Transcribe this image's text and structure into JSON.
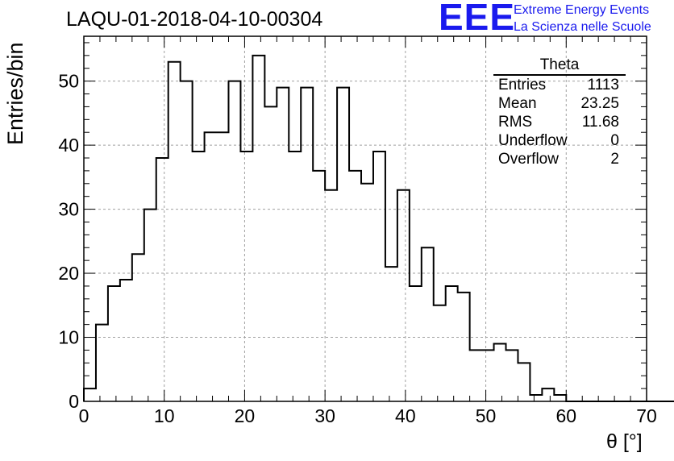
{
  "run_title": "LAQU-01-2018-04-10-00304",
  "logo": {
    "mark": "EEE",
    "line1": "Extreme Energy Events",
    "line2": "La Scienza nelle Scuole",
    "color": "#1a1aee"
  },
  "stats": {
    "title": "Theta",
    "rows": [
      {
        "key": "Entries",
        "value": "1113"
      },
      {
        "key": "Mean",
        "value": "23.25"
      },
      {
        "key": "RMS",
        "value": "11.68"
      },
      {
        "key": "Underflow",
        "value": "0"
      },
      {
        "key": "Overflow",
        "value": "2"
      }
    ]
  },
  "chart_data": {
    "type": "bar",
    "histogram": true,
    "title": "LAQU-01-2018-04-10-00304",
    "xlabel": "θ [°]",
    "ylabel": "Entries/bin",
    "xlim": [
      0,
      70
    ],
    "ylim": [
      0,
      57
    ],
    "bin_width": 1.5,
    "x_start": 0,
    "values": [
      2,
      12,
      18,
      19,
      23,
      30,
      38,
      53,
      50,
      39,
      42,
      42,
      50,
      39,
      54,
      46,
      49,
      39,
      49,
      36,
      33,
      49,
      36,
      34,
      39,
      21,
      33,
      18,
      24,
      15,
      18,
      17,
      8,
      8,
      9,
      8,
      6,
      1,
      2,
      1,
      0,
      0,
      0,
      0,
      0,
      0,
      0,
      0,
      0,
      0
    ],
    "x_ticks": [
      0,
      10,
      20,
      30,
      40,
      50,
      60,
      70
    ],
    "y_ticks": [
      0,
      10,
      20,
      30,
      40,
      50
    ],
    "grid": true,
    "line_color": "#000000",
    "grid_color": "#a0a0a0"
  }
}
